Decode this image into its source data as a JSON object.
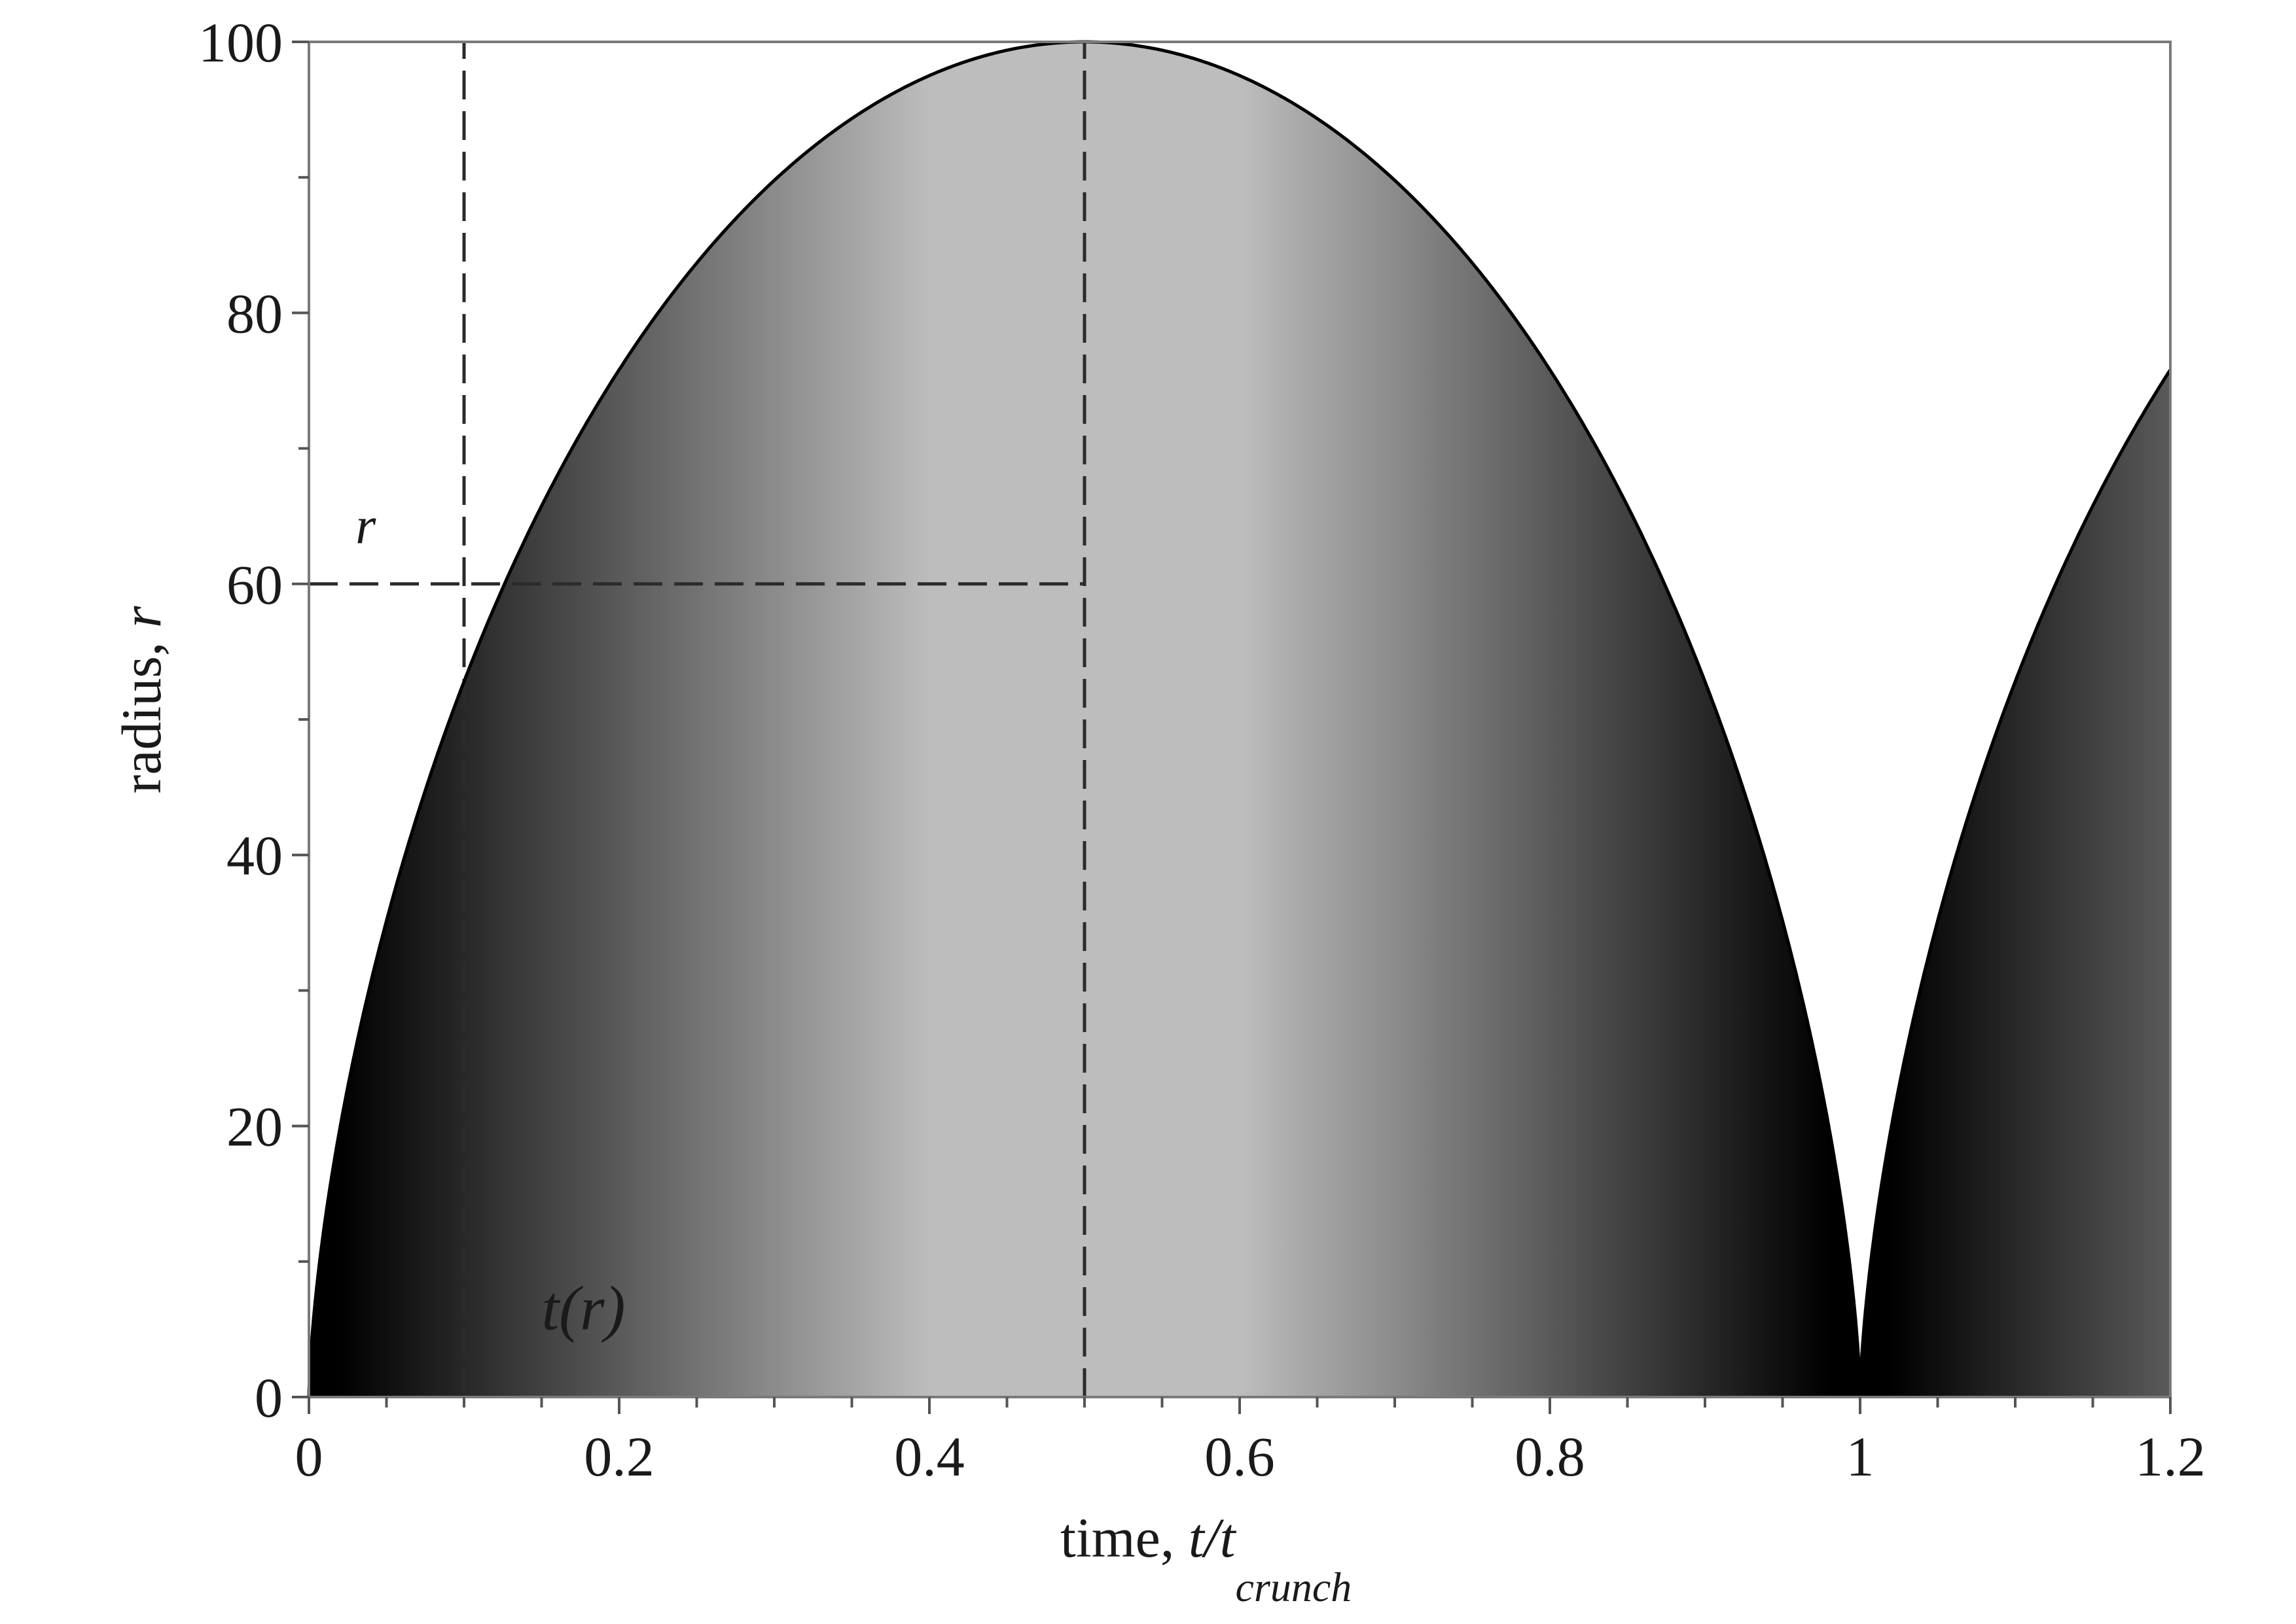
{
  "chart_data": {
    "type": "area",
    "xlabel": {
      "prefix": "time, ",
      "var": "t/t",
      "sub": "crunch"
    },
    "ylabel": {
      "prefix": "radius, ",
      "var": "r"
    },
    "xlim": [
      0,
      1.2
    ],
    "ylim": [
      0,
      100
    ],
    "xticks": [
      0,
      0.2,
      0.4,
      0.6,
      0.8,
      1,
      1.2
    ],
    "xtick_labels": [
      "0",
      "0.2",
      "0.4",
      "0.6",
      "0.8",
      "1",
      "1.2"
    ],
    "yticks": [
      0,
      20,
      40,
      60,
      80,
      100
    ],
    "ytick_labels": [
      "0",
      "20",
      "40",
      "60",
      "80",
      "100"
    ],
    "grid": false,
    "series": [
      {
        "curve": "cycloid",
        "r_max": 100,
        "t_crunch": 1,
        "x_range": [
          0,
          1.2
        ],
        "points": [
          {
            "x": 0.0,
            "y": 0
          },
          {
            "x": 0.1,
            "y": 60
          },
          {
            "x": 0.5,
            "y": 100
          },
          {
            "x": 0.9,
            "y": 60
          },
          {
            "x": 1.0,
            "y": 0
          },
          {
            "x": 1.1,
            "y": 60
          },
          {
            "x": 1.2,
            "y": 80
          }
        ],
        "fill": "grayscale gradient, dark at r=0, light at r max",
        "fill_colors": [
          "#000000",
          "#bdbdbd"
        ],
        "line_color": "#000000"
      }
    ],
    "reference_lines": [
      {
        "orientation": "vertical",
        "x": 0.1,
        "y_range": [
          0,
          100
        ],
        "style": "dashed"
      },
      {
        "orientation": "vertical",
        "x": 0.5,
        "y_range": [
          0,
          100
        ],
        "style": "dashed"
      },
      {
        "orientation": "horizontal",
        "y": 60,
        "x_range": [
          0,
          0.5
        ],
        "style": "dashed"
      }
    ],
    "annotations": [
      {
        "text": "r",
        "x": 0.03,
        "y": 63
      },
      {
        "text": "t(r)",
        "x": 0.15,
        "y": 5
      }
    ]
  }
}
